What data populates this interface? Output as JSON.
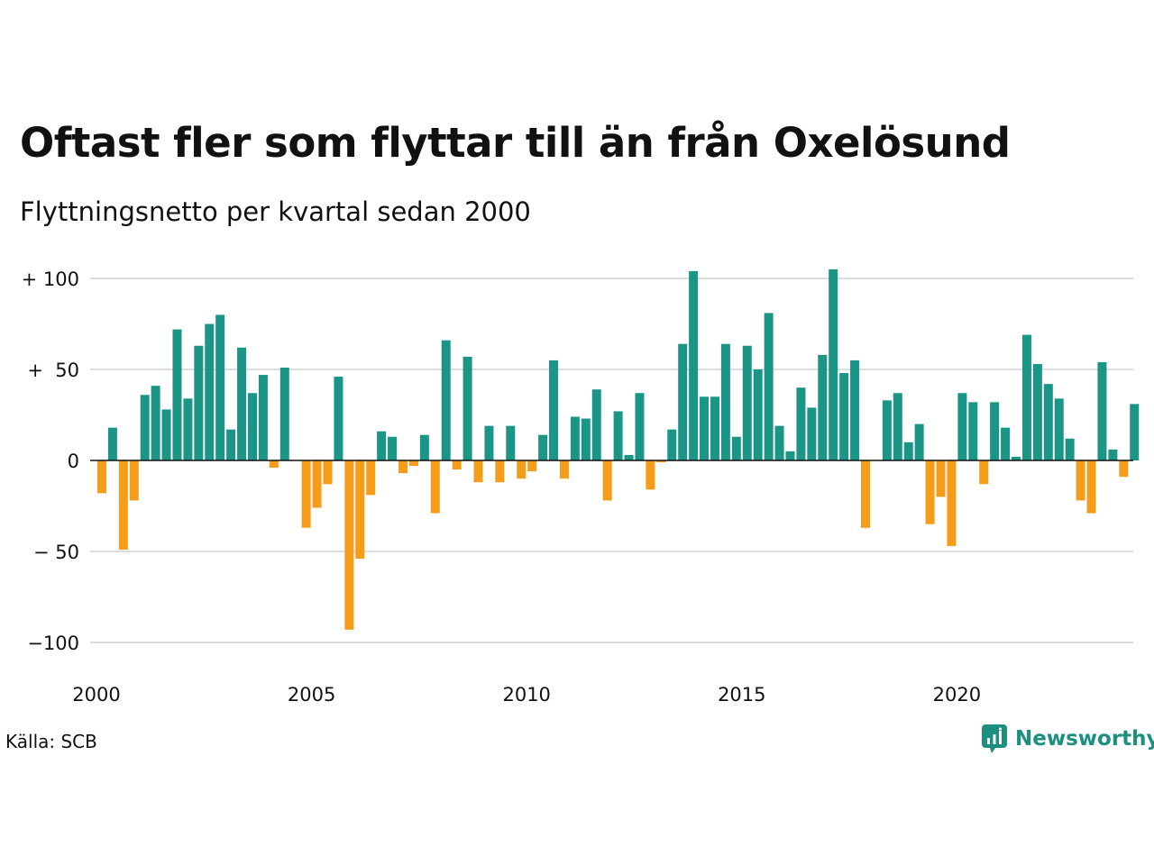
{
  "title": "Oftast fler som flyttar till än från Oxelösund",
  "subtitle": "Flyttningsnetto per kvartal sedan 2000",
  "source": "Källa: SCB",
  "brand": {
    "name": "Newsworthy",
    "icon": "newsworthy-logo-icon"
  },
  "colors": {
    "positive": "#1b9585",
    "negative": "#f59c1a",
    "grid": "#dddddd",
    "zero": "#111111"
  },
  "chart_data": {
    "type": "bar",
    "title": "Oftast fler som flyttar till än från Oxelösund",
    "subtitle": "Flyttningsnetto per kvartal sedan 2000",
    "xlabel": "",
    "ylabel": "",
    "ylim": [
      -100,
      100
    ],
    "yticks": [
      100,
      50,
      0,
      -50,
      -100
    ],
    "ytick_labels": [
      "+ 100",
      "+  50",
      "0",
      "− 50",
      "−100"
    ],
    "xtick_labels": [
      "2000",
      "2005",
      "2010",
      "2015",
      "2020"
    ],
    "xtick_years": [
      2000,
      2005,
      2010,
      2015,
      2020
    ],
    "start_year": 2000,
    "grid": true,
    "legend": "none",
    "values": [
      -18,
      18,
      -49,
      -22,
      36,
      41,
      28,
      72,
      34,
      63,
      75,
      80,
      17,
      62,
      37,
      47,
      -4,
      51,
      0,
      -37,
      -26,
      -13,
      46,
      -93,
      -54,
      -19,
      16,
      13,
      -7,
      -3,
      14,
      -29,
      66,
      -5,
      57,
      -12,
      19,
      -12,
      19,
      -10,
      -6,
      14,
      55,
      -10,
      24,
      23,
      39,
      -22,
      27,
      3,
      37,
      -16,
      -1,
      17,
      64,
      104,
      35,
      35,
      64,
      13,
      63,
      50,
      81,
      19,
      5,
      40,
      29,
      58,
      105,
      48,
      55,
      -37,
      0,
      33,
      37,
      10,
      20,
      -35,
      -20,
      -47,
      37,
      32,
      -13,
      32,
      18,
      2,
      69,
      53,
      42,
      34,
      12,
      -22,
      -29,
      54,
      6,
      -9,
      31
    ]
  }
}
